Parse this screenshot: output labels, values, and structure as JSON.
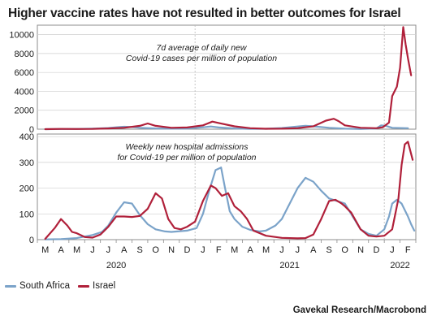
{
  "title": "Higher vaccine rates have not resulted in better outcomes for Israel",
  "source": "Gavekal Research/Macrobond",
  "colors": {
    "south_africa": "#7ba3c9",
    "israel": "#b0203a",
    "grid": "#cfcfcf",
    "frame": "#8c8c8c"
  },
  "legend": [
    {
      "name": "South Africa",
      "color": "#7ba3c9"
    },
    {
      "name": "Israel",
      "color": "#b0203a"
    }
  ],
  "x_axis": {
    "months": [
      "M",
      "A",
      "M",
      "J",
      "J",
      "A",
      "S",
      "O",
      "N",
      "D",
      "J",
      "F",
      "M",
      "A",
      "M",
      "J",
      "J",
      "A",
      "S",
      "O",
      "N",
      "D",
      "J",
      "F"
    ],
    "years": [
      "2020",
      "2021",
      "2022"
    ]
  },
  "chart_data": [
    {
      "type": "line",
      "annotation": [
        "7d average of daily new",
        "Covid-19 cases per million of population"
      ],
      "ylim": [
        0,
        11000
      ],
      "yticks": [
        0,
        2000,
        4000,
        6000,
        8000,
        10000
      ],
      "ytick_labels": [
        "0",
        "2000",
        "4000",
        "6000",
        "8000",
        "10000"
      ],
      "series": [
        {
          "name": "South Africa",
          "color": "#7ba3c9",
          "points": [
            [
              0,
              0
            ],
            [
              2,
              30
            ],
            [
              3,
              60
            ],
            [
              4,
              120
            ],
            [
              4.5,
              200
            ],
            [
              5,
              260
            ],
            [
              5.5,
              230
            ],
            [
              6,
              150
            ],
            [
              7,
              80
            ],
            [
              8,
              50
            ],
            [
              9,
              60
            ],
            [
              10,
              200
            ],
            [
              10.5,
              280
            ],
            [
              11,
              180
            ],
            [
              12,
              80
            ],
            [
              13,
              30
            ],
            [
              14,
              40
            ],
            [
              15,
              120
            ],
            [
              16,
              280
            ],
            [
              16.5,
              360
            ],
            [
              17,
              300
            ],
            [
              18,
              150
            ],
            [
              19,
              50
            ],
            [
              20,
              20
            ],
            [
              21,
              80
            ],
            [
              21.3,
              400
            ],
            [
              21.6,
              350
            ],
            [
              22,
              150
            ],
            [
              23,
              100
            ]
          ]
        },
        {
          "name": "Israel",
          "color": "#b0203a",
          "points": [
            [
              0,
              0
            ],
            [
              1,
              30
            ],
            [
              2,
              15
            ],
            [
              3,
              30
            ],
            [
              4,
              80
            ],
            [
              5,
              150
            ],
            [
              6,
              350
            ],
            [
              6.5,
              600
            ],
            [
              7,
              350
            ],
            [
              8,
              150
            ],
            [
              9,
              180
            ],
            [
              10,
              400
            ],
            [
              10.6,
              800
            ],
            [
              11,
              650
            ],
            [
              12,
              300
            ],
            [
              13,
              100
            ],
            [
              14,
              40
            ],
            [
              15,
              50
            ],
            [
              16,
              100
            ],
            [
              17,
              300
            ],
            [
              17.8,
              900
            ],
            [
              18.3,
              1100
            ],
            [
              18.6,
              850
            ],
            [
              19,
              400
            ],
            [
              20,
              150
            ],
            [
              21,
              100
            ],
            [
              21.4,
              200
            ],
            [
              21.8,
              700
            ],
            [
              22,
              3500
            ],
            [
              22.3,
              4500
            ],
            [
              22.5,
              6500
            ],
            [
              22.7,
              10800
            ],
            [
              22.85,
              9000
            ],
            [
              23,
              7500
            ],
            [
              23.2,
              5700
            ]
          ]
        }
      ]
    },
    {
      "type": "line",
      "annotation": [
        "Weekly new hospital admissions",
        "for Covid-19 per million of population"
      ],
      "ylim": [
        0,
        410
      ],
      "yticks": [
        0,
        100,
        200,
        300,
        400
      ],
      "ytick_labels": [
        "0",
        "100",
        "200",
        "300",
        "400"
      ],
      "series": [
        {
          "name": "South Africa",
          "color": "#7ba3c9",
          "points": [
            [
              0,
              1
            ],
            [
              1,
              2
            ],
            [
              2,
              6
            ],
            [
              3,
              18
            ],
            [
              3.6,
              30
            ],
            [
              4,
              55
            ],
            [
              4.5,
              105
            ],
            [
              5,
              145
            ],
            [
              5.5,
              140
            ],
            [
              6,
              95
            ],
            [
              6.5,
              60
            ],
            [
              7,
              40
            ],
            [
              7.6,
              32
            ],
            [
              8,
              30
            ],
            [
              9,
              35
            ],
            [
              9.6,
              45
            ],
            [
              10,
              100
            ],
            [
              10.4,
              190
            ],
            [
              10.8,
              270
            ],
            [
              11.15,
              280
            ],
            [
              11.4,
              200
            ],
            [
              11.7,
              110
            ],
            [
              12,
              80
            ],
            [
              12.5,
              50
            ],
            [
              13,
              38
            ],
            [
              13.6,
              32
            ],
            [
              14,
              35
            ],
            [
              14.6,
              55
            ],
            [
              15,
              80
            ],
            [
              15.5,
              140
            ],
            [
              16,
              200
            ],
            [
              16.5,
              240
            ],
            [
              17,
              225
            ],
            [
              17.5,
              190
            ],
            [
              18,
              160
            ],
            [
              18.5,
              150
            ],
            [
              19,
              140
            ],
            [
              19.5,
              90
            ],
            [
              20,
              40
            ],
            [
              20.5,
              22
            ],
            [
              21,
              15
            ],
            [
              21.5,
              40
            ],
            [
              21.8,
              90
            ],
            [
              22,
              140
            ],
            [
              22.3,
              155
            ],
            [
              22.6,
              140
            ],
            [
              23,
              90
            ],
            [
              23.2,
              60
            ],
            [
              23.4,
              35
            ]
          ]
        },
        {
          "name": "Israel",
          "color": "#b0203a",
          "points": [
            [
              0,
              3
            ],
            [
              0.6,
              45
            ],
            [
              1,
              80
            ],
            [
              1.4,
              55
            ],
            [
              1.7,
              30
            ],
            [
              2,
              25
            ],
            [
              2.5,
              10
            ],
            [
              3,
              8
            ],
            [
              3.5,
              20
            ],
            [
              4,
              50
            ],
            [
              4.5,
              90
            ],
            [
              5,
              90
            ],
            [
              5.5,
              88
            ],
            [
              6,
              92
            ],
            [
              6.5,
              120
            ],
            [
              7,
              180
            ],
            [
              7.4,
              160
            ],
            [
              7.8,
              80
            ],
            [
              8.2,
              45
            ],
            [
              8.6,
              40
            ],
            [
              9,
              50
            ],
            [
              9.5,
              70
            ],
            [
              10,
              150
            ],
            [
              10.5,
              210
            ],
            [
              10.8,
              200
            ],
            [
              11.2,
              170
            ],
            [
              11.6,
              180
            ],
            [
              12,
              130
            ],
            [
              12.4,
              110
            ],
            [
              12.8,
              80
            ],
            [
              13.2,
              35
            ],
            [
              14,
              15
            ],
            [
              15,
              7
            ],
            [
              16,
              5
            ],
            [
              16.5,
              6
            ],
            [
              17,
              20
            ],
            [
              17.5,
              80
            ],
            [
              18,
              150
            ],
            [
              18.4,
              155
            ],
            [
              18.8,
              140
            ],
            [
              19,
              130
            ],
            [
              19.4,
              105
            ],
            [
              20,
              40
            ],
            [
              20.5,
              15
            ],
            [
              21,
              12
            ],
            [
              21.5,
              15
            ],
            [
              22,
              40
            ],
            [
              22.4,
              160
            ],
            [
              22.6,
              290
            ],
            [
              22.8,
              370
            ],
            [
              23,
              380
            ],
            [
              23.3,
              310
            ]
          ]
        }
      ]
    }
  ]
}
